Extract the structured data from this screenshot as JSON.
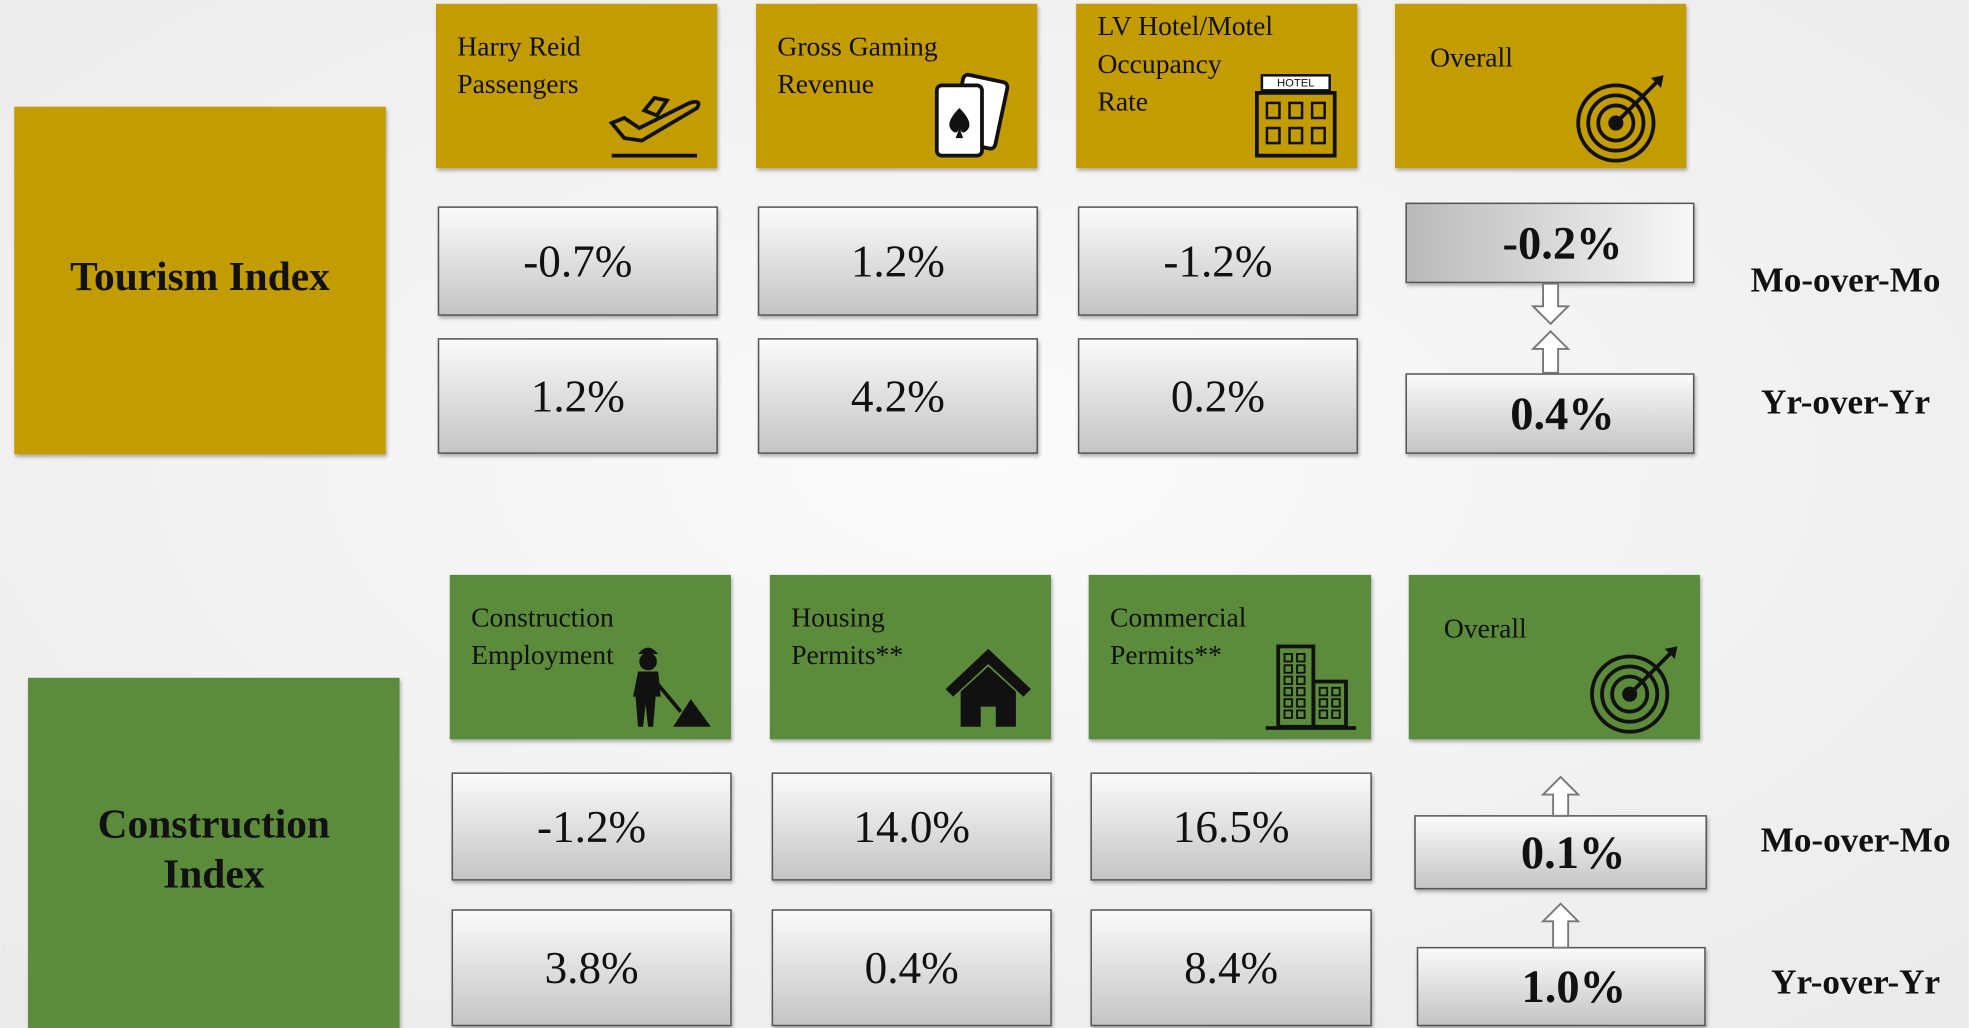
{
  "sections": [
    {
      "title": [
        "Tourism Index"
      ],
      "metrics": [
        {
          "label": [
            "Harry Reid",
            "Passengers"
          ],
          "mom": "-0.7%",
          "yoy": "1.2%"
        },
        {
          "label": [
            "Gross Gaming",
            "Revenue"
          ],
          "mom": "1.2%",
          "yoy": "4.2%"
        },
        {
          "label": [
            "LV Hotel/Motel",
            "Occupancy",
            "Rate"
          ],
          "icon_text": "HOTEL",
          "mom": "-1.2%",
          "yoy": "0.2%"
        }
      ],
      "overall": {
        "label": [
          "Overall"
        ],
        "mom": "-0.2%",
        "yoy": "0.4%"
      },
      "row_labels": [
        "Mo-over-Mo",
        "Yr-over-Yr"
      ]
    },
    {
      "title": [
        "Construction",
        "Index"
      ],
      "metrics": [
        {
          "label": [
            "Construction",
            "Employment"
          ],
          "mom": "-1.2%",
          "yoy": "3.8%"
        },
        {
          "label": [
            "Housing",
            "Permits**"
          ],
          "mom": "14.0%",
          "yoy": "0.4%"
        },
        {
          "label": [
            "Commercial",
            "Permits**"
          ],
          "mom": "16.5%",
          "yoy": "8.4%"
        }
      ],
      "overall": {
        "label": [
          "Overall"
        ],
        "mom": "0.1%",
        "yoy": "1.0%"
      },
      "row_labels": [
        "Mo-over-Mo",
        "Yr-over-Yr"
      ]
    }
  ]
}
